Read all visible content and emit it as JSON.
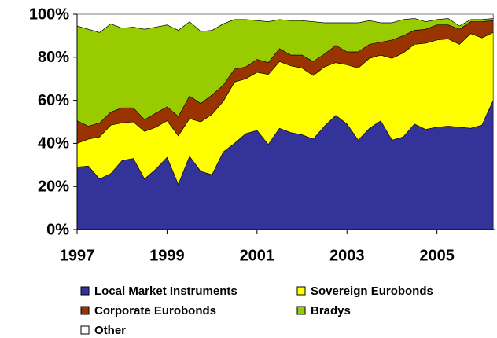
{
  "chart_data": {
    "type": "stacked_area",
    "x": [
      1997,
      1997.25,
      1997.5,
      1997.75,
      1998,
      1998.25,
      1998.5,
      1998.75,
      1999,
      1999.25,
      1999.5,
      1999.75,
      2000,
      2000.25,
      2000.5,
      2000.75,
      2001,
      2001.25,
      2001.5,
      2001.75,
      2002,
      2002.25,
      2002.5,
      2002.75,
      2003,
      2003.25,
      2003.5,
      2003.75,
      2004,
      2004.25,
      2004.5,
      2004.75,
      2005,
      2005.25,
      2005.5,
      2005.75,
      2006,
      2006.25
    ],
    "series": [
      {
        "name": "Local Market Instruments",
        "color": "#333399",
        "values": [
          29,
          29.5,
          23.5,
          26,
          32,
          33,
          23.5,
          28,
          33.5,
          21,
          34,
          27,
          25.5,
          36,
          40,
          44.5,
          46,
          39.5,
          47,
          45,
          44,
          42,
          48,
          53,
          49,
          41.5,
          47,
          50.5,
          41.5,
          43,
          49,
          46.5,
          47.5,
          48,
          47.5,
          47,
          48.5,
          60
        ]
      },
      {
        "name": "Sovereign Eurobonds",
        "color": "#ffff00",
        "values": [
          11,
          12.5,
          19.5,
          22.5,
          17.5,
          17,
          22,
          19.5,
          17,
          22.5,
          17.5,
          23,
          28,
          23.5,
          28.5,
          25.5,
          27,
          32.5,
          31,
          31,
          31,
          29.5,
          27.5,
          24.5,
          27.5,
          33.5,
          32.5,
          30.5,
          38,
          39,
          37,
          40,
          40.5,
          40.5,
          38.5,
          44,
          40.5,
          31.5
        ]
      },
      {
        "name": "Corporate Eurobonds",
        "color": "#993300",
        "values": [
          10.5,
          6,
          6.5,
          6,
          7,
          6.5,
          5.5,
          6.5,
          6.5,
          9,
          10.5,
          8.5,
          9,
          7.5,
          6,
          5.5,
          6,
          5.5,
          6,
          5,
          6,
          6.5,
          6,
          8,
          6,
          7.5,
          6.5,
          6,
          8.5,
          8,
          6.5,
          6.5,
          7,
          6.5,
          7,
          5.5,
          7.5,
          5.5
        ]
      },
      {
        "name": "Bradys",
        "color": "#99cc00",
        "values": [
          44,
          45,
          42,
          41,
          37,
          37.5,
          42,
          40,
          38,
          40,
          34.5,
          33.5,
          30,
          28.5,
          23,
          22,
          18,
          19,
          13.5,
          16,
          16,
          18.5,
          14.5,
          10.5,
          13.5,
          13.5,
          11,
          9,
          8,
          7.5,
          5.5,
          3.5,
          2.5,
          3,
          1.5,
          1,
          1,
          1
        ]
      },
      {
        "name": "Other",
        "color": "#ffffff",
        "values": [
          5.5,
          7,
          8.5,
          4.5,
          6.5,
          6,
          7,
          6,
          5,
          7.5,
          3.5,
          8,
          7.5,
          4.5,
          2.5,
          2.5,
          3,
          3.5,
          2.5,
          3,
          3,
          3.5,
          4,
          4,
          4,
          4,
          3,
          4,
          4,
          2.5,
          2,
          3.5,
          2.5,
          2,
          5.5,
          2.5,
          2.5,
          2
        ]
      }
    ],
    "xlim": [
      1997,
      2006.3
    ],
    "xticks": [
      1997,
      1999,
      2001,
      2003,
      2005
    ],
    "ylim": [
      0,
      100
    ],
    "yticks": [
      {
        "value": 0,
        "label": "0%"
      },
      {
        "value": 20,
        "label": "20%"
      },
      {
        "value": 40,
        "label": "40%"
      },
      {
        "value": 60,
        "label": "60%"
      },
      {
        "value": 80,
        "label": "80%"
      },
      {
        "value": 100,
        "label": "100%"
      }
    ],
    "legend": "bottom"
  }
}
